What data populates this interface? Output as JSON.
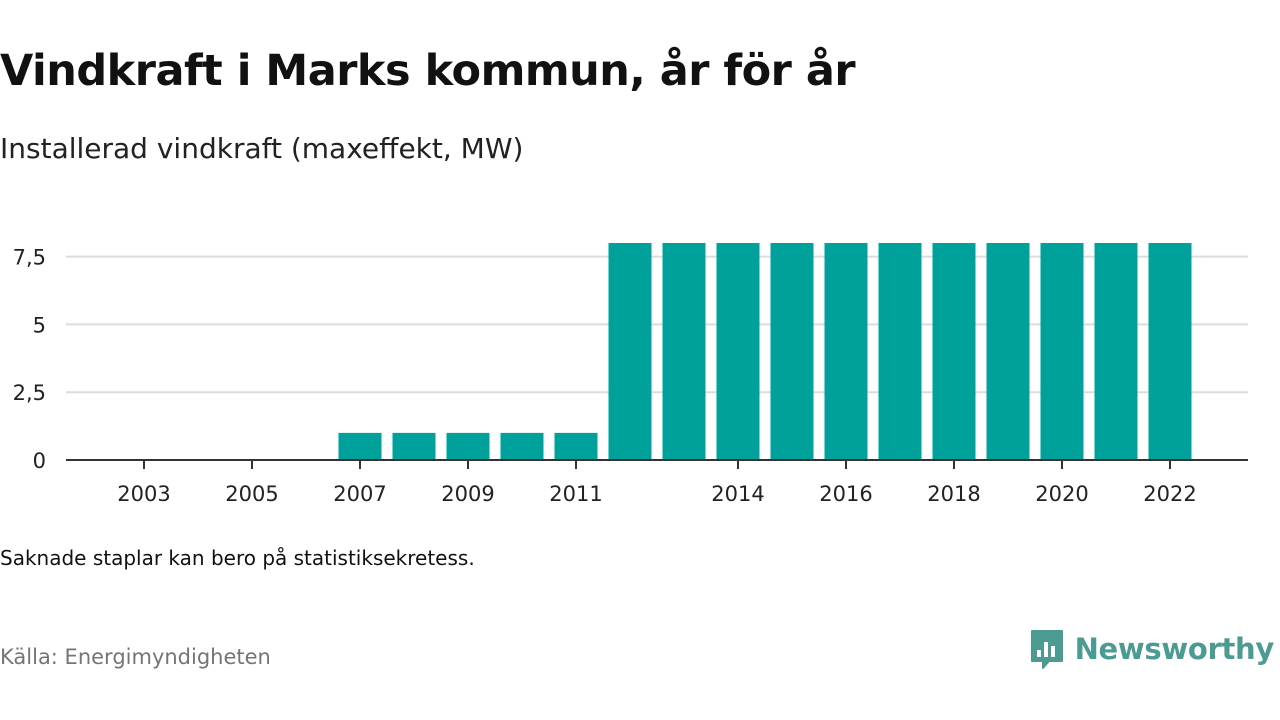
{
  "header": {
    "title": "Vindkraft i Marks kommun, år för år",
    "subtitle": "Installerad vindkraft (maxeffekt, MW)"
  },
  "footer": {
    "note": "Saknade staplar kan bero på statistiksekretess.",
    "source": "Källa: Energimyndigheten",
    "brand": "Newsworthy"
  },
  "colors": {
    "bar": "#00a19a",
    "grid": "#dcdcdc",
    "axis": "#333333",
    "brand": "#4b9b92"
  },
  "chart_data": {
    "type": "bar",
    "title": "Vindkraft i Marks kommun, år för år",
    "subtitle": "Installerad vindkraft (maxeffekt, MW)",
    "xlabel": "",
    "ylabel": "",
    "categories": [
      "2002",
      "2003",
      "2004",
      "2005",
      "2006",
      "2007",
      "2008",
      "2009",
      "2010",
      "2011",
      "2012",
      "2013",
      "2014",
      "2015",
      "2016",
      "2017",
      "2018",
      "2019",
      "2020",
      "2021",
      "2022"
    ],
    "values": [
      0,
      0,
      0,
      0,
      0,
      1,
      1,
      1,
      1,
      1,
      8,
      8,
      8,
      8,
      8,
      8,
      8,
      8,
      8,
      8,
      8
    ],
    "x_tick_labels": [
      "2003",
      "2005",
      "2007",
      "2009",
      "2011",
      "2014",
      "2016",
      "2018",
      "2020",
      "2022"
    ],
    "y_ticks": [
      0,
      2.5,
      5,
      7.5
    ],
    "y_tick_labels": [
      "0",
      "2,5",
      "5",
      "7,5"
    ],
    "ylim": [
      0,
      8
    ],
    "grid": true,
    "legend": "none"
  }
}
